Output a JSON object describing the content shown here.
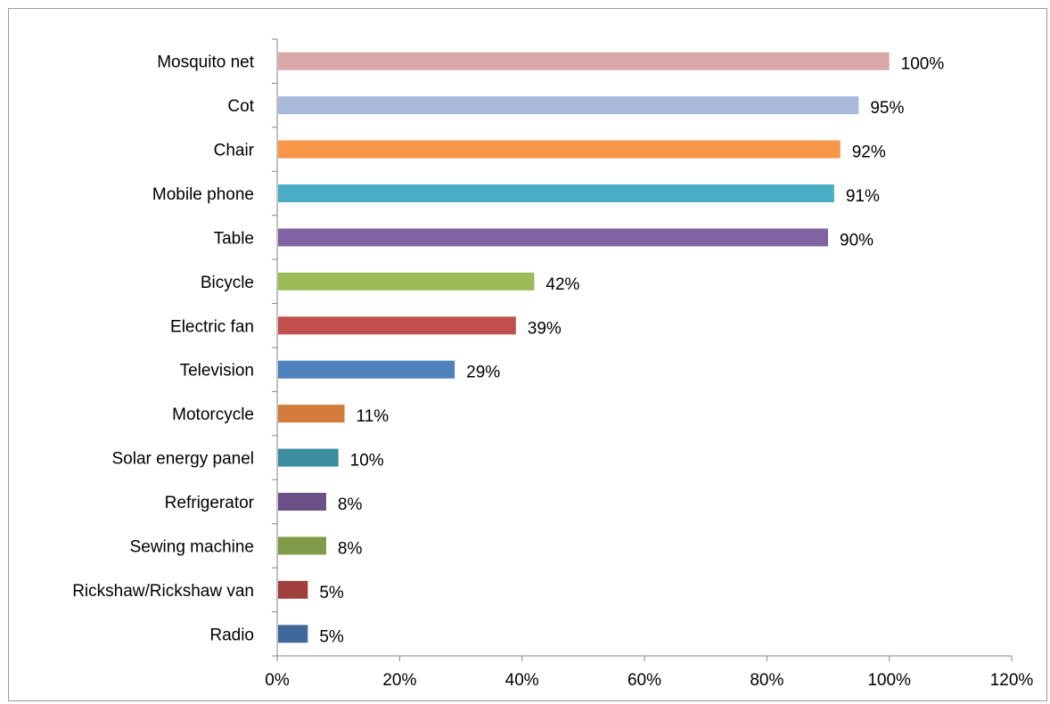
{
  "chart_data": {
    "type": "bar",
    "orientation": "horizontal",
    "title": "",
    "xlabel": "",
    "ylabel": "",
    "xlim": [
      0,
      120
    ],
    "x_ticks": [
      "0%",
      "20%",
      "40%",
      "60%",
      "80%",
      "100%",
      "120%"
    ],
    "grid": false,
    "legend": "none",
    "categories": [
      "Mosquito net",
      "Cot",
      "Chair",
      "Mobile phone",
      "Table",
      "Bicycle",
      "Electric fan",
      "Television",
      "Motorcycle",
      "Solar energy panel",
      "Refrigerator",
      "Sewing machine",
      "Rickshaw/Rickshaw van",
      "Radio"
    ],
    "values": [
      100,
      95,
      92,
      91,
      90,
      42,
      39,
      29,
      11,
      10,
      8,
      8,
      5,
      5
    ],
    "value_labels": [
      "100%",
      "95%",
      "92%",
      "91%",
      "90%",
      "42%",
      "39%",
      "29%",
      "11%",
      "10%",
      "8%",
      "8%",
      "5%",
      "5%"
    ],
    "colors": [
      "#D9A7A7",
      "#A9B9D9",
      "#F79646",
      "#4BACC6",
      "#8064A2",
      "#9BBB59",
      "#C0504D",
      "#4F81BD",
      "#D27B3A",
      "#3A8C9E",
      "#6A5087",
      "#7F9A48",
      "#A0403D",
      "#40699A"
    ]
  }
}
